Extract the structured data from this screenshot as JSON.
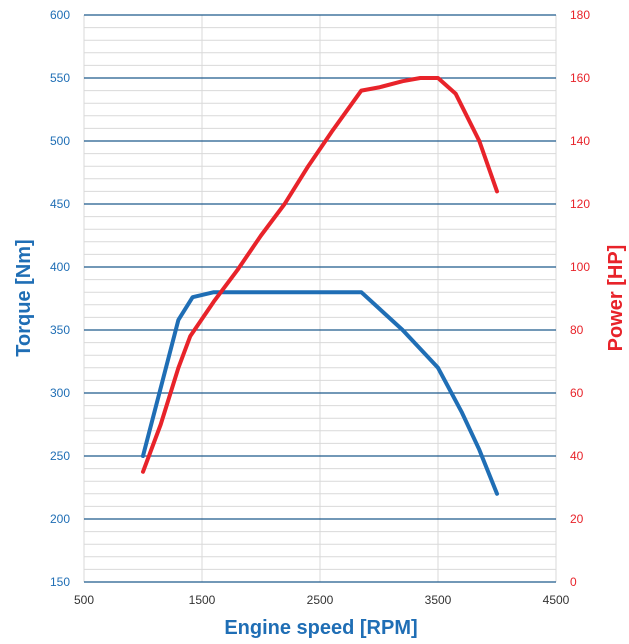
{
  "chart_data": {
    "type": "line",
    "xlabel": "Engine speed [RPM]",
    "ylabel_left": "Torque [Nm]",
    "ylabel_right": "Power [HP]",
    "xlim": [
      500,
      4500
    ],
    "ylim_left": [
      150,
      600
    ],
    "ylim_right": [
      0,
      180
    ],
    "x_ticks": [
      "500",
      "1500",
      "2500",
      "3500",
      "4500"
    ],
    "y_left_ticks": [
      "150",
      "200",
      "250",
      "300",
      "350",
      "400",
      "450",
      "500",
      "550",
      "600"
    ],
    "y_right_ticks": [
      "0",
      "20",
      "40",
      "60",
      "80",
      "100",
      "120",
      "140",
      "160",
      "180"
    ],
    "grid": true,
    "colors": {
      "torque": "#1f6eb5",
      "power": "#e8232a",
      "major_grid": "#1f5a8c",
      "minor_grid": "#d9d9d9"
    },
    "series": [
      {
        "axis": "left",
        "x": [
          1000,
          1300,
          1420,
          1600,
          2000,
          2500,
          2850,
          3200,
          3500,
          3700,
          3850,
          4000
        ],
        "y": [
          250,
          358,
          376,
          380,
          380,
          380,
          380,
          350,
          320,
          285,
          255,
          220
        ]
      },
      {
        "axis": "right",
        "x": [
          1000,
          1150,
          1300,
          1400,
          1600,
          1800,
          2000,
          2200,
          2400,
          2600,
          2850,
          3000,
          3200,
          3350,
          3500,
          3650,
          3850,
          4000
        ],
        "y": [
          35,
          50,
          68,
          78,
          89,
          99,
          110,
          120,
          132,
          143,
          156,
          157,
          159,
          160,
          160,
          155,
          140,
          124
        ]
      }
    ]
  }
}
